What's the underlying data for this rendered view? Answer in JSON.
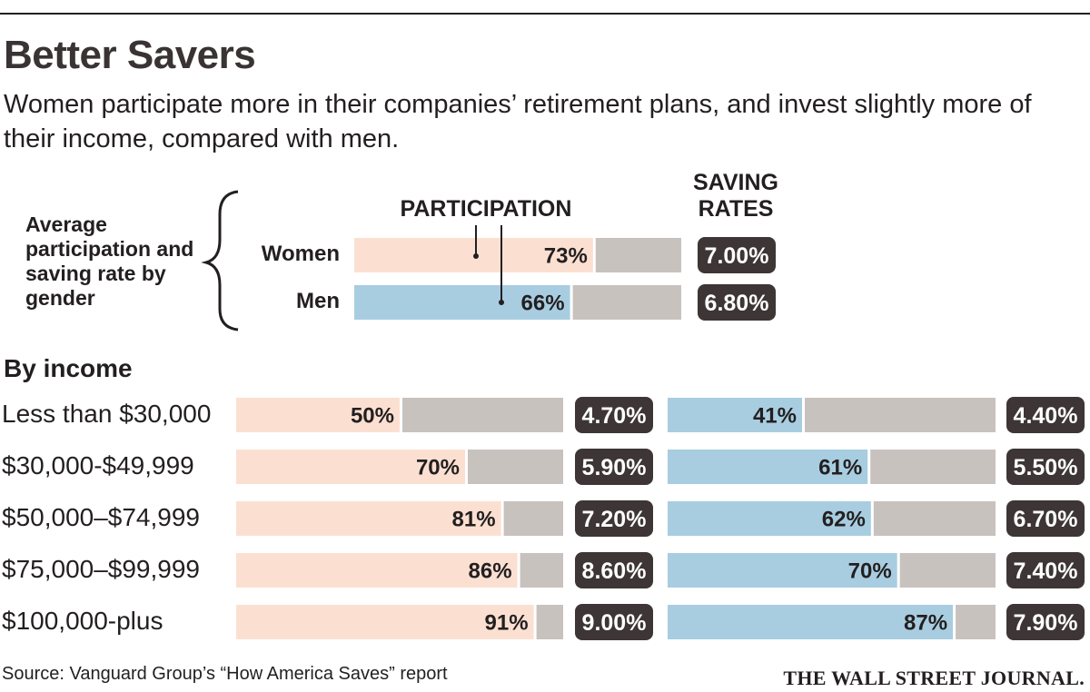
{
  "header": {
    "title": "Better Savers",
    "subtitle": "Women participate more in their companies’ retirement plans, and invest slightly more of their income, compared with men."
  },
  "average_section": {
    "label": "Average participation and saving rate by gender",
    "participation_header": "PARTICIPATION",
    "saving_rates_header_line1": "SAVING",
    "saving_rates_header_line2": "RATES"
  },
  "by_income_label": "By income",
  "source": "Source: Vanguard Group’s “How America Saves” report",
  "credit": "THE WALL STREET JOURNAL.",
  "colors": {
    "women": "#fbe0d2",
    "men": "#a8cde0",
    "remainder": "#c8c2bf",
    "rate_badge": "#3d3536",
    "text": "#231f20"
  },
  "chart_data": {
    "type": "bar",
    "title": "Better Savers",
    "units": {
      "participation": "%",
      "saving_rate": "%"
    },
    "average": {
      "series": [
        {
          "name": "Women",
          "participation": 73,
          "participation_label": "73%",
          "saving_rate": 7.0,
          "saving_rate_label": "7.00%"
        },
        {
          "name": "Men",
          "participation": 66,
          "participation_label": "66%",
          "saving_rate": 6.8,
          "saving_rate_label": "6.80%"
        }
      ]
    },
    "by_income": {
      "categories": [
        "Less than $30,000",
        "$30,000-$49,999",
        "$50,000–$74,999",
        "$75,000–$99,999",
        "$100,000-plus"
      ],
      "series": [
        {
          "name": "Women",
          "participation": [
            50,
            70,
            81,
            86,
            91
          ],
          "participation_labels": [
            "50%",
            "70%",
            "81%",
            "86%",
            "91%"
          ],
          "saving_rates": [
            4.7,
            5.9,
            7.2,
            8.6,
            9.0
          ],
          "saving_rate_labels": [
            "4.70%",
            "5.90%",
            "7.20%",
            "8.60%",
            "9.00%"
          ]
        },
        {
          "name": "Men",
          "participation": [
            41,
            61,
            62,
            70,
            87
          ],
          "participation_labels": [
            "41%",
            "61%",
            "62%",
            "70%",
            "87%"
          ],
          "saving_rates": [
            4.4,
            5.5,
            6.7,
            7.4,
            7.9
          ],
          "saving_rate_labels": [
            "4.40%",
            "5.50%",
            "6.70%",
            "7.40%",
            "7.90%"
          ]
        }
      ]
    },
    "xlim": [
      0,
      100
    ]
  }
}
